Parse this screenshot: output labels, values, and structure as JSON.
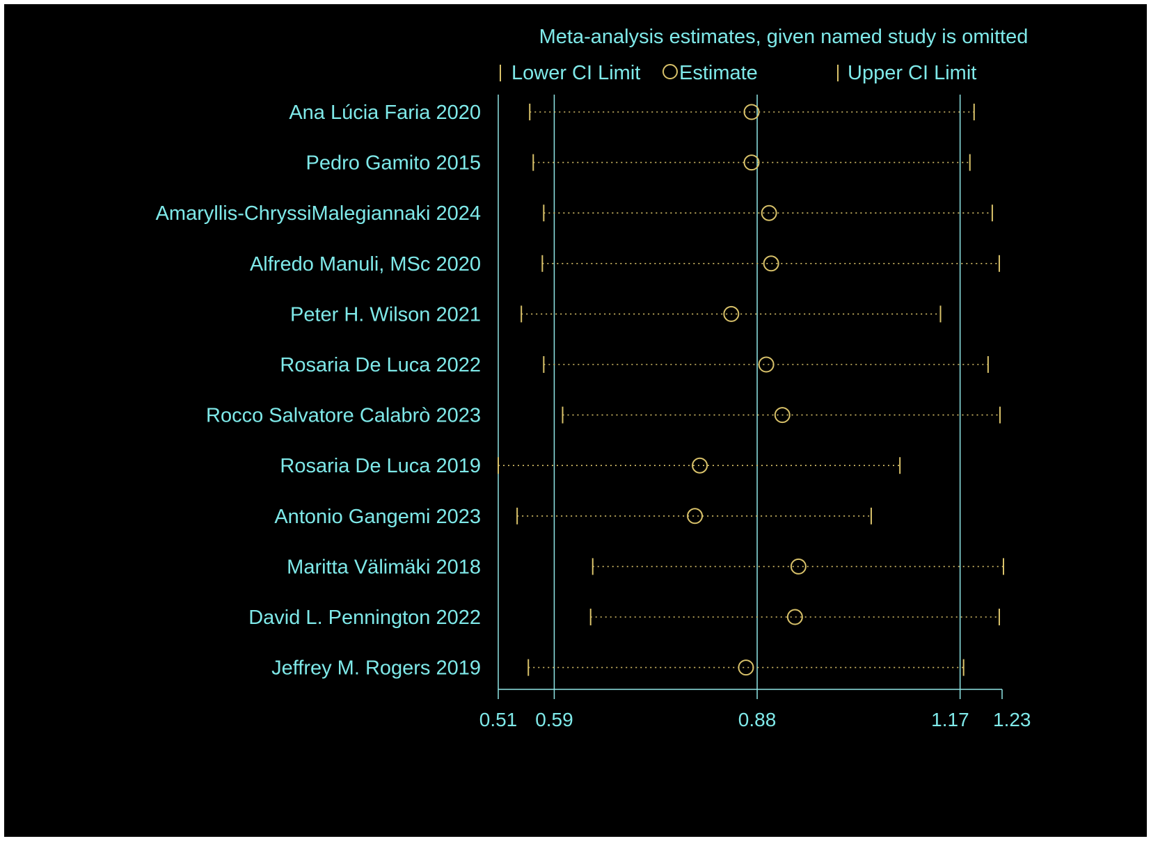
{
  "colors": {
    "background": "#000000",
    "text": "#7fe9e9",
    "axis": "#8fe6e6",
    "marker": "#d9c26a"
  },
  "chart_data": {
    "type": "forest",
    "title": "Meta-analysis estimates, given named study is omitted",
    "legend": {
      "lower": "Lower CI Limit",
      "estimate": "Estimate",
      "upper": "Upper CI Limit",
      "placement": "top"
    },
    "xlim": [
      0.51,
      1.23
    ],
    "x_ticks": [
      "0.51",
      "0.59",
      "0.88",
      "1.17",
      "1.23"
    ],
    "x_tick_values": [
      0.51,
      0.59,
      0.88,
      1.17,
      1.23
    ],
    "reference_lines": [
      0.59,
      0.88,
      1.17
    ],
    "studies": [
      {
        "name": "Ana Lúcia Faria 2020",
        "lower": 0.555,
        "estimate": 0.872,
        "upper": 1.19
      },
      {
        "name": "Pedro Gamito 2015",
        "lower": 0.56,
        "estimate": 0.872,
        "upper": 1.184
      },
      {
        "name": "Amaryllis-ChryssiMalegiannaki 2024",
        "lower": 0.575,
        "estimate": 0.897,
        "upper": 1.216
      },
      {
        "name": "Alfredo Manuli, MSc 2020",
        "lower": 0.573,
        "estimate": 0.9,
        "upper": 1.226
      },
      {
        "name": "Peter H. Wilson 2021",
        "lower": 0.543,
        "estimate": 0.843,
        "upper": 1.142
      },
      {
        "name": "Rosaria De Luca 2022",
        "lower": 0.575,
        "estimate": 0.893,
        "upper": 1.21
      },
      {
        "name": "Rocco Salvatore Calabrò 2023",
        "lower": 0.602,
        "estimate": 0.916,
        "upper": 1.227
      },
      {
        "name": "Rosaria De Luca 2019",
        "lower": 0.51,
        "estimate": 0.798,
        "upper": 1.084
      },
      {
        "name": "Antonio Gangemi 2023",
        "lower": 0.537,
        "estimate": 0.791,
        "upper": 1.043
      },
      {
        "name": "Maritta Välimäki 2018",
        "lower": 0.645,
        "estimate": 0.939,
        "upper": 1.232
      },
      {
        "name": "David L. Pennington 2022",
        "lower": 0.642,
        "estimate": 0.934,
        "upper": 1.226
      },
      {
        "name": "Jeffrey M. Rogers 2019",
        "lower": 0.553,
        "estimate": 0.864,
        "upper": 1.175
      }
    ]
  }
}
